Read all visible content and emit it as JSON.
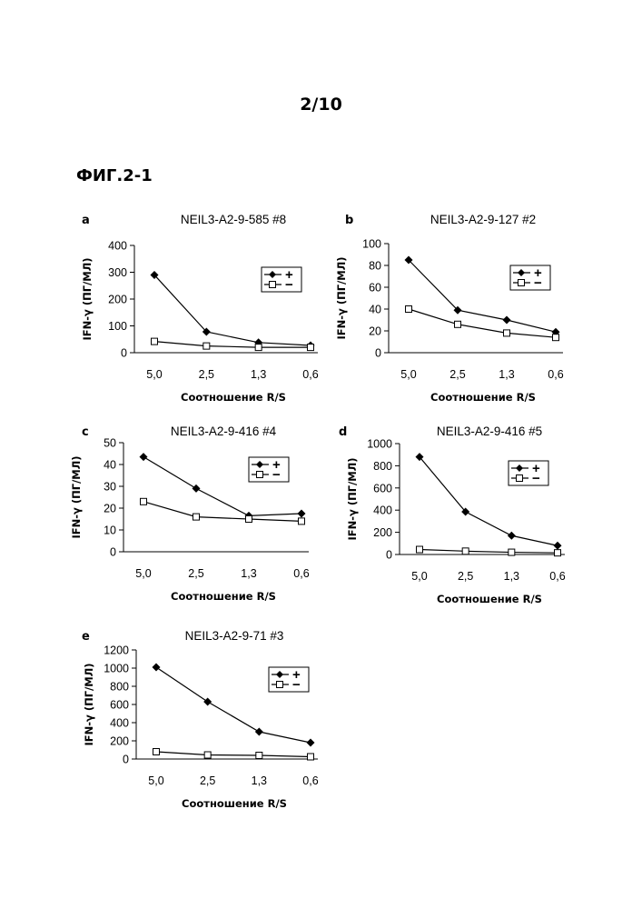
{
  "page_number": "2/10",
  "figure_label": "ФИГ.2-1",
  "chart_data": [
    {
      "type": "line",
      "panel": "a",
      "title": "NEIL3-A2-9-585 #8",
      "xlabel": "Соотношение R/S",
      "ylabel": "IFN-γ (ПГ/МЛ)",
      "categories": [
        "5,0",
        "2,5",
        "1,3",
        "0,6"
      ],
      "ylim": [
        0,
        400
      ],
      "yticks": [
        0,
        100,
        200,
        300,
        400
      ],
      "legend_position": "top-right",
      "series": [
        {
          "name": "+",
          "marker": "filled-diamond",
          "values": [
            290,
            78,
            38,
            27
          ]
        },
        {
          "name": "−",
          "marker": "open-square",
          "values": [
            42,
            25,
            20,
            20
          ]
        }
      ]
    },
    {
      "type": "line",
      "panel": "b",
      "title": "NEIL3-A2-9-127 #2",
      "xlabel": "Соотношение R/S",
      "ylabel": "IFN-γ (ПГ/МЛ)",
      "categories": [
        "5,0",
        "2,5",
        "1,3",
        "0,6"
      ],
      "ylim": [
        0,
        100
      ],
      "yticks": [
        0,
        20,
        40,
        60,
        80,
        100
      ],
      "legend_position": "top-right",
      "series": [
        {
          "name": "+",
          "marker": "filled-diamond",
          "values": [
            85,
            39,
            30,
            19
          ]
        },
        {
          "name": "−",
          "marker": "open-square",
          "values": [
            40,
            26,
            18,
            14
          ]
        }
      ]
    },
    {
      "type": "line",
      "panel": "c",
      "title": "NEIL3-A2-9-416 #4",
      "xlabel": "Соотношение R/S",
      "ylabel": "IFN-γ (ПГ/МЛ)",
      "categories": [
        "5,0",
        "2,5",
        "1,3",
        "0,6"
      ],
      "ylim": [
        0,
        50
      ],
      "yticks": [
        0,
        10,
        20,
        30,
        40,
        50
      ],
      "legend_position": "top-right",
      "series": [
        {
          "name": "+",
          "marker": "filled-diamond",
          "values": [
            43.5,
            29,
            16.5,
            17.5
          ]
        },
        {
          "name": "−",
          "marker": "open-square",
          "values": [
            23,
            16,
            15,
            14
          ]
        }
      ]
    },
    {
      "type": "line",
      "panel": "d",
      "title": "NEIL3-A2-9-416 #5",
      "xlabel": "Соотношение R/S",
      "ylabel": "IFN-γ (ПГ/МЛ)",
      "categories": [
        "5,0",
        "2,5",
        "1,3",
        "0,6"
      ],
      "ylim": [
        0,
        1000
      ],
      "yticks": [
        0,
        200,
        400,
        600,
        800,
        1000
      ],
      "legend_position": "top-right",
      "series": [
        {
          "name": "+",
          "marker": "filled-diamond",
          "values": [
            880,
            385,
            170,
            80
          ]
        },
        {
          "name": "−",
          "marker": "open-square",
          "values": [
            45,
            30,
            20,
            15
          ]
        }
      ]
    },
    {
      "type": "line",
      "panel": "e",
      "title": "NEIL3-A2-9-71 #3",
      "xlabel": "Соотношение R/S",
      "ylabel": "IFN-γ (ПГ/МЛ)",
      "categories": [
        "5,0",
        "2,5",
        "1,3",
        "0,6"
      ],
      "ylim": [
        0,
        1200
      ],
      "yticks": [
        0,
        200,
        400,
        600,
        800,
        1000,
        1200
      ],
      "legend_position": "top-right",
      "series": [
        {
          "name": "+",
          "marker": "filled-diamond",
          "values": [
            1010,
            630,
            300,
            180
          ]
        },
        {
          "name": "−",
          "marker": "open-square",
          "values": [
            80,
            45,
            40,
            25
          ]
        }
      ]
    }
  ]
}
